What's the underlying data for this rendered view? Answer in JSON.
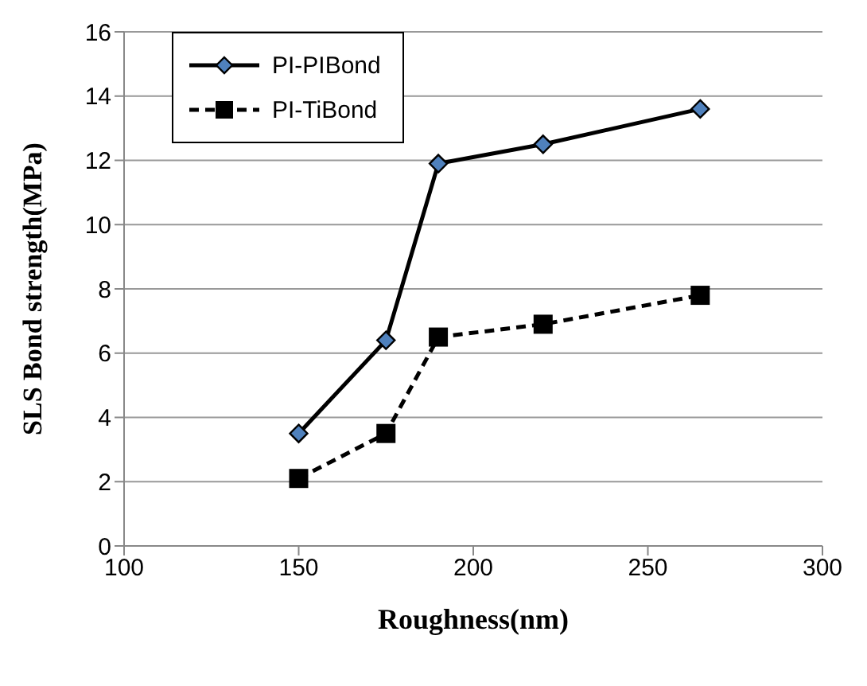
{
  "chart_data": {
    "type": "line",
    "xlabel": "Roughness(nm)",
    "ylabel": "SLS Bond strength(MPa)",
    "x": [
      150,
      175,
      190,
      220,
      265
    ],
    "series": [
      {
        "name": "PI-PIBond",
        "color": "#000000",
        "values": [
          3.5,
          6.4,
          11.9,
          12.5,
          13.6
        ],
        "marker": "diamond",
        "line_style": "solid"
      },
      {
        "name": "PI-TiBond",
        "color": "#000000",
        "values": [
          2.1,
          3.5,
          6.5,
          6.9,
          7.8
        ],
        "marker": "square",
        "line_style": "dashed"
      }
    ],
    "xlim": [
      100,
      300
    ],
    "xticks": [
      100,
      150,
      200,
      250,
      300
    ],
    "ylim": [
      0,
      16
    ],
    "yticks": [
      0,
      2,
      4,
      6,
      8,
      10,
      12,
      14,
      16
    ],
    "grid": "y",
    "legend": "top left"
  }
}
